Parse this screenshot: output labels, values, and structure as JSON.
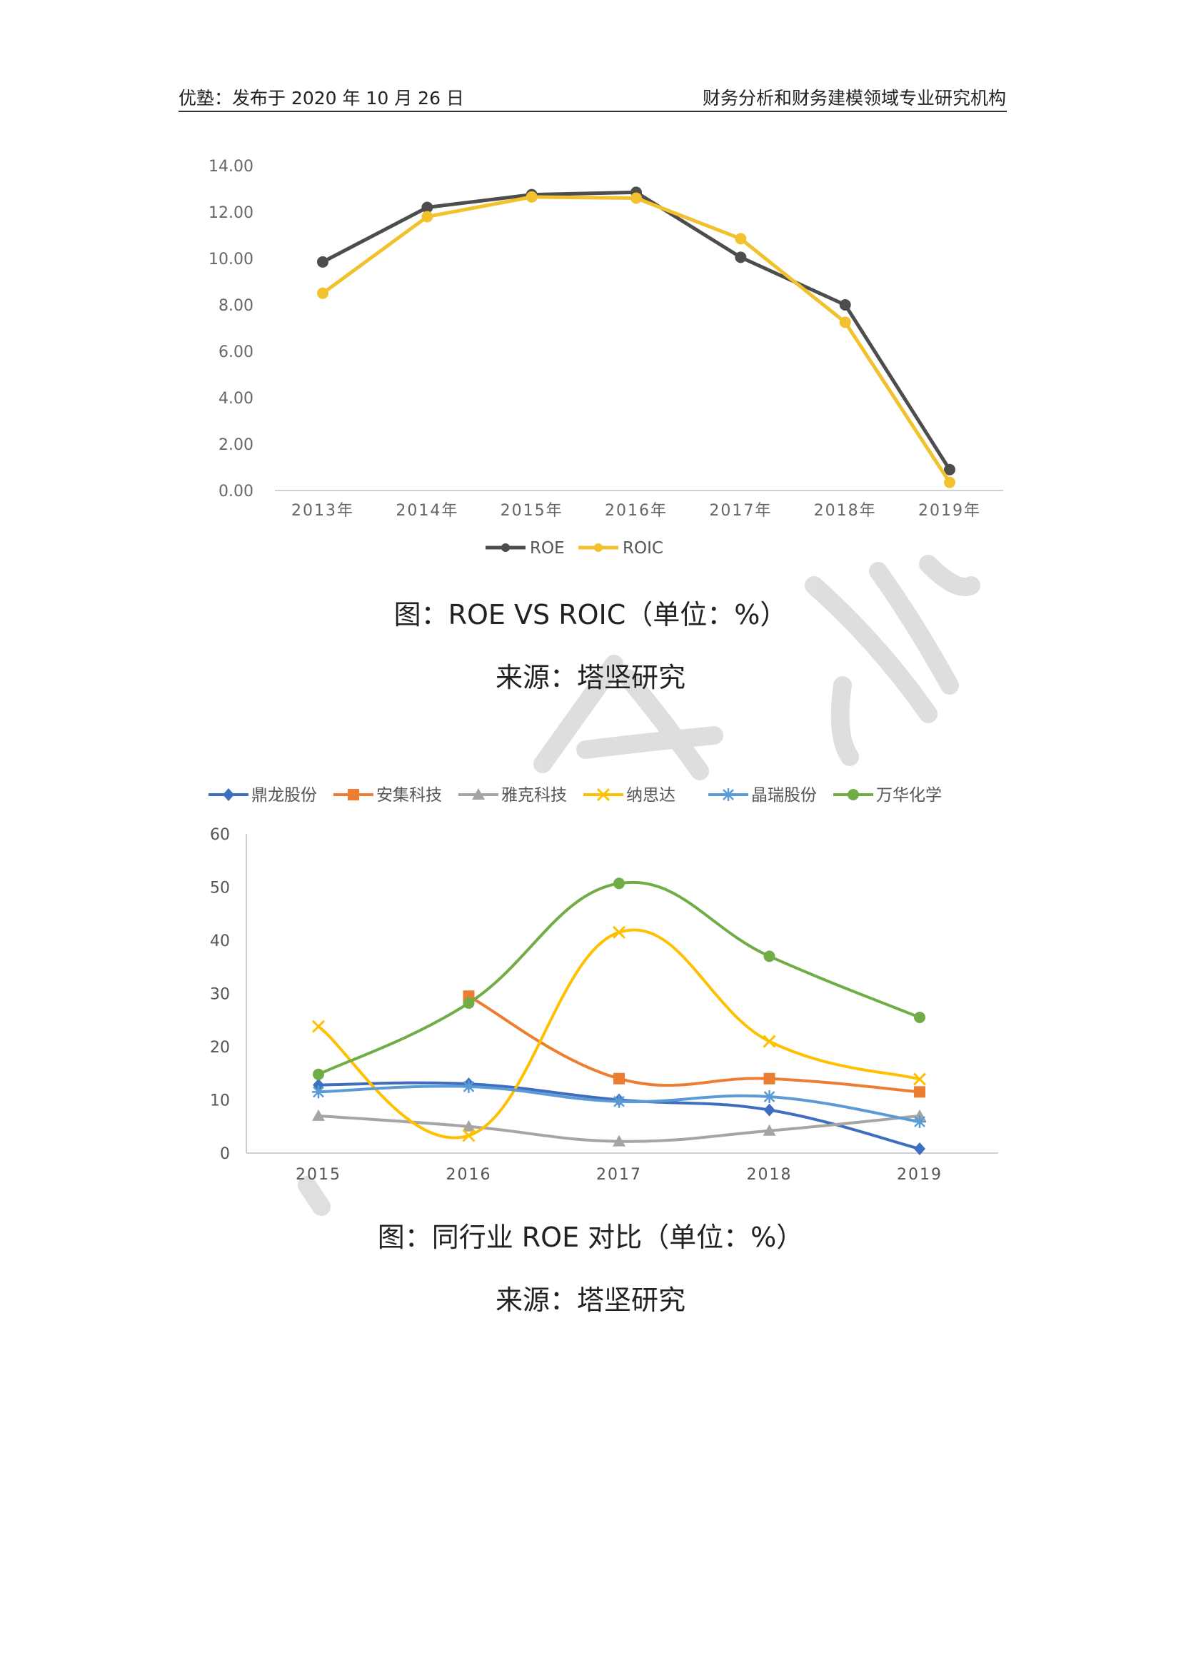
{
  "header": {
    "left_text": "优塾：发布于 2020 年 10 月 26 日",
    "right_text": "财务分析和财务建模领域专业研究机构"
  },
  "watermark": {
    "text": "研究"
  },
  "figure1": {
    "caption": "图：ROE VS ROIC（单位：%）",
    "source": "来源：塔坚研究"
  },
  "figure2": {
    "caption": "图：同行业 ROE 对比（单位：%）",
    "source": "来源：塔坚研究"
  },
  "chart_data": [
    {
      "type": "line",
      "categories": [
        "2013年",
        "2014年",
        "2015年",
        "2016年",
        "2017年",
        "2018年",
        "2019年"
      ],
      "series": [
        {
          "name": "ROE",
          "color": "#4d4d4d",
          "values": [
            9.85,
            12.2,
            12.75,
            12.85,
            10.05,
            8.0,
            0.9
          ]
        },
        {
          "name": "ROIC",
          "color": "#f2c12e",
          "values": [
            8.5,
            11.8,
            12.65,
            12.6,
            10.85,
            7.25,
            0.35
          ]
        }
      ],
      "y_ticks": [
        "0.00",
        "2.00",
        "4.00",
        "6.00",
        "8.00",
        "10.00",
        "12.00",
        "14.00"
      ],
      "ylim": [
        0,
        14
      ],
      "legend_position": "bottom",
      "grid": false,
      "smooth": false
    },
    {
      "type": "line",
      "categories": [
        "2015",
        "2016",
        "2017",
        "2018",
        "2019"
      ],
      "series": [
        {
          "name": "鼎龙股份",
          "color": "#3f6ec0",
          "marker": "diamond",
          "values": [
            12.8,
            13.0,
            10.0,
            8.1,
            0.8
          ]
        },
        {
          "name": "安集科技",
          "color": "#ed7d31",
          "marker": "square",
          "values": [
            null,
            29.5,
            14.0,
            14.0,
            11.5
          ]
        },
        {
          "name": "雅克科技",
          "color": "#a5a5a5",
          "marker": "triangle",
          "values": [
            7.0,
            5.0,
            2.2,
            4.2,
            7.0
          ]
        },
        {
          "name": "纳思达",
          "color": "#ffc000",
          "marker": "x",
          "values": [
            23.8,
            3.3,
            41.5,
            21.0,
            13.9
          ]
        },
        {
          "name": "晶瑞股份",
          "color": "#5b9bd5",
          "marker": "star",
          "values": [
            11.5,
            12.5,
            9.7,
            10.6,
            5.9
          ]
        },
        {
          "name": "万华化学",
          "color": "#70ad47",
          "marker": "circle",
          "values": [
            14.8,
            28.2,
            50.7,
            37.0,
            25.5
          ]
        }
      ],
      "y_ticks": [
        "0",
        "10",
        "20",
        "30",
        "40",
        "50",
        "60"
      ],
      "ylim": [
        0,
        60
      ],
      "legend_position": "top",
      "grid": false,
      "smooth": true
    }
  ]
}
